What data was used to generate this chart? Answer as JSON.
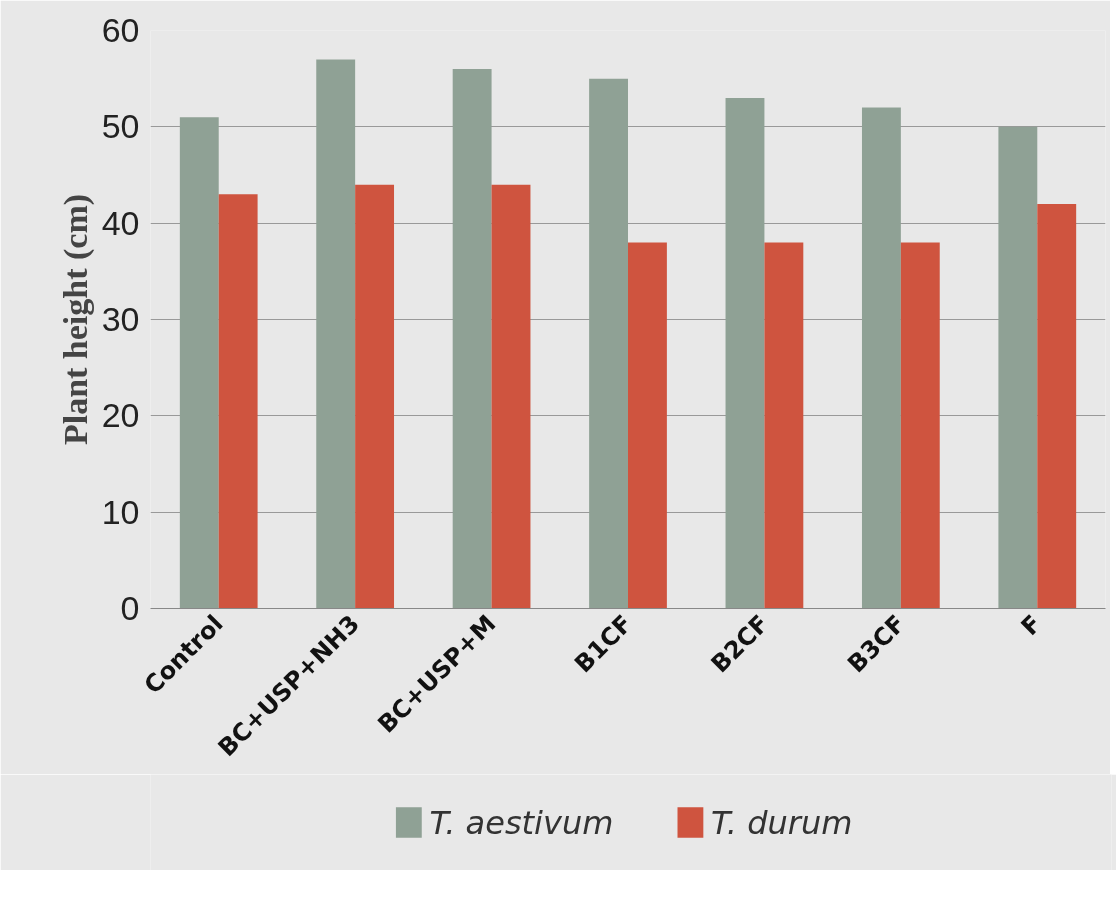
{
  "chart_data": {
    "type": "bar",
    "ylabel": "Plant height (cm)",
    "categories": [
      "Control",
      "BC+USP+NH3",
      "BC+USP+M",
      "B1CF",
      "B2CF",
      "B3CF",
      "F"
    ],
    "series": [
      {
        "name": "T. aestivum",
        "color": "#8fa195",
        "values": [
          51,
          57,
          56,
          55,
          53,
          52,
          50
        ]
      },
      {
        "name": "T. durum",
        "color": "#cf543f",
        "values": [
          43,
          44,
          44,
          38,
          38,
          38,
          42
        ]
      }
    ],
    "ylim": [
      0,
      60
    ],
    "yticks": [
      0,
      10,
      20,
      30,
      40,
      50,
      60
    ],
    "grid": "y",
    "legend": "bottom"
  }
}
